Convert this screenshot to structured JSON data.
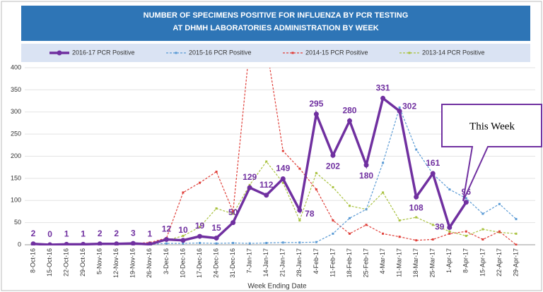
{
  "chart_data": {
    "type": "line",
    "title": [
      "NUMBER OF SPECIMENS POSITIVE FOR INFLUENZA BY PCR TESTING",
      "AT DHMH LABORATORIES ADMINISTRATION BY WEEK"
    ],
    "x_label": "Week Ending Date",
    "annotation": "This Week",
    "categories": [
      "8-Oct-16",
      "15-Oct-16",
      "22-Oct-16",
      "29-Oct-16",
      "5-Nov-16",
      "12-Nov-16",
      "19-Nov-16",
      "26-Nov-16",
      "3-Dec-16",
      "10-Dec-16",
      "17-Dec-16",
      "24-Dec-16",
      "31-Dec-16",
      "7-Jan-17",
      "14-Jan-17",
      "21-Jan-17",
      "28-Jan-17",
      "4-Feb-17",
      "11-Feb-17",
      "18-Feb-17",
      "25-Feb-17",
      "4-Mar-17",
      "11-Mar-17",
      "18-Mar-17",
      "25-Mar-17",
      "1-Apr-17",
      "8-Apr-17",
      "15-Apr-17",
      "22-Apr-17",
      "29-Apr-17"
    ],
    "series": [
      {
        "name": "2016-17 PCR Positive",
        "color": "#7030a0",
        "values": [
          2,
          0,
          1,
          1,
          2,
          2,
          3,
          1,
          12,
          10,
          19,
          15,
          50,
          129,
          112,
          149,
          78,
          295,
          202,
          280,
          180,
          331,
          302,
          108,
          161,
          39,
          96,
          null,
          null,
          null
        ]
      },
      {
        "name": "2015-16 PCR Positive",
        "color": "#5b9bd5",
        "values": [
          2,
          1,
          1,
          1,
          2,
          1,
          2,
          1,
          3,
          3,
          4,
          3,
          4,
          3,
          4,
          5,
          5,
          6,
          25,
          60,
          80,
          185,
          310,
          215,
          160,
          125,
          105,
          70,
          92,
          58
        ]
      },
      {
        "name": "2014-15 PCR Positive",
        "color": "#e0403a",
        "values": [
          1,
          1,
          1,
          1,
          2,
          2,
          3,
          5,
          15,
          118,
          140,
          165,
          75,
          450,
          450,
          212,
          172,
          125,
          55,
          25,
          45,
          25,
          18,
          10,
          12,
          25,
          30,
          12,
          30,
          0
        ]
      },
      {
        "name": "2013-14 PCR Positive",
        "color": "#a9c23f",
        "values": [
          1,
          1,
          1,
          1,
          1,
          1,
          2,
          3,
          10,
          20,
          40,
          82,
          70,
          135,
          188,
          140,
          55,
          162,
          130,
          88,
          80,
          118,
          55,
          62,
          45,
          30,
          20,
          35,
          28,
          25
        ]
      }
    ],
    "ylim": [
      0,
      400
    ],
    "yticks": [
      0,
      50,
      100,
      150,
      200,
      250,
      300,
      350,
      400
    ],
    "grid": true
  }
}
